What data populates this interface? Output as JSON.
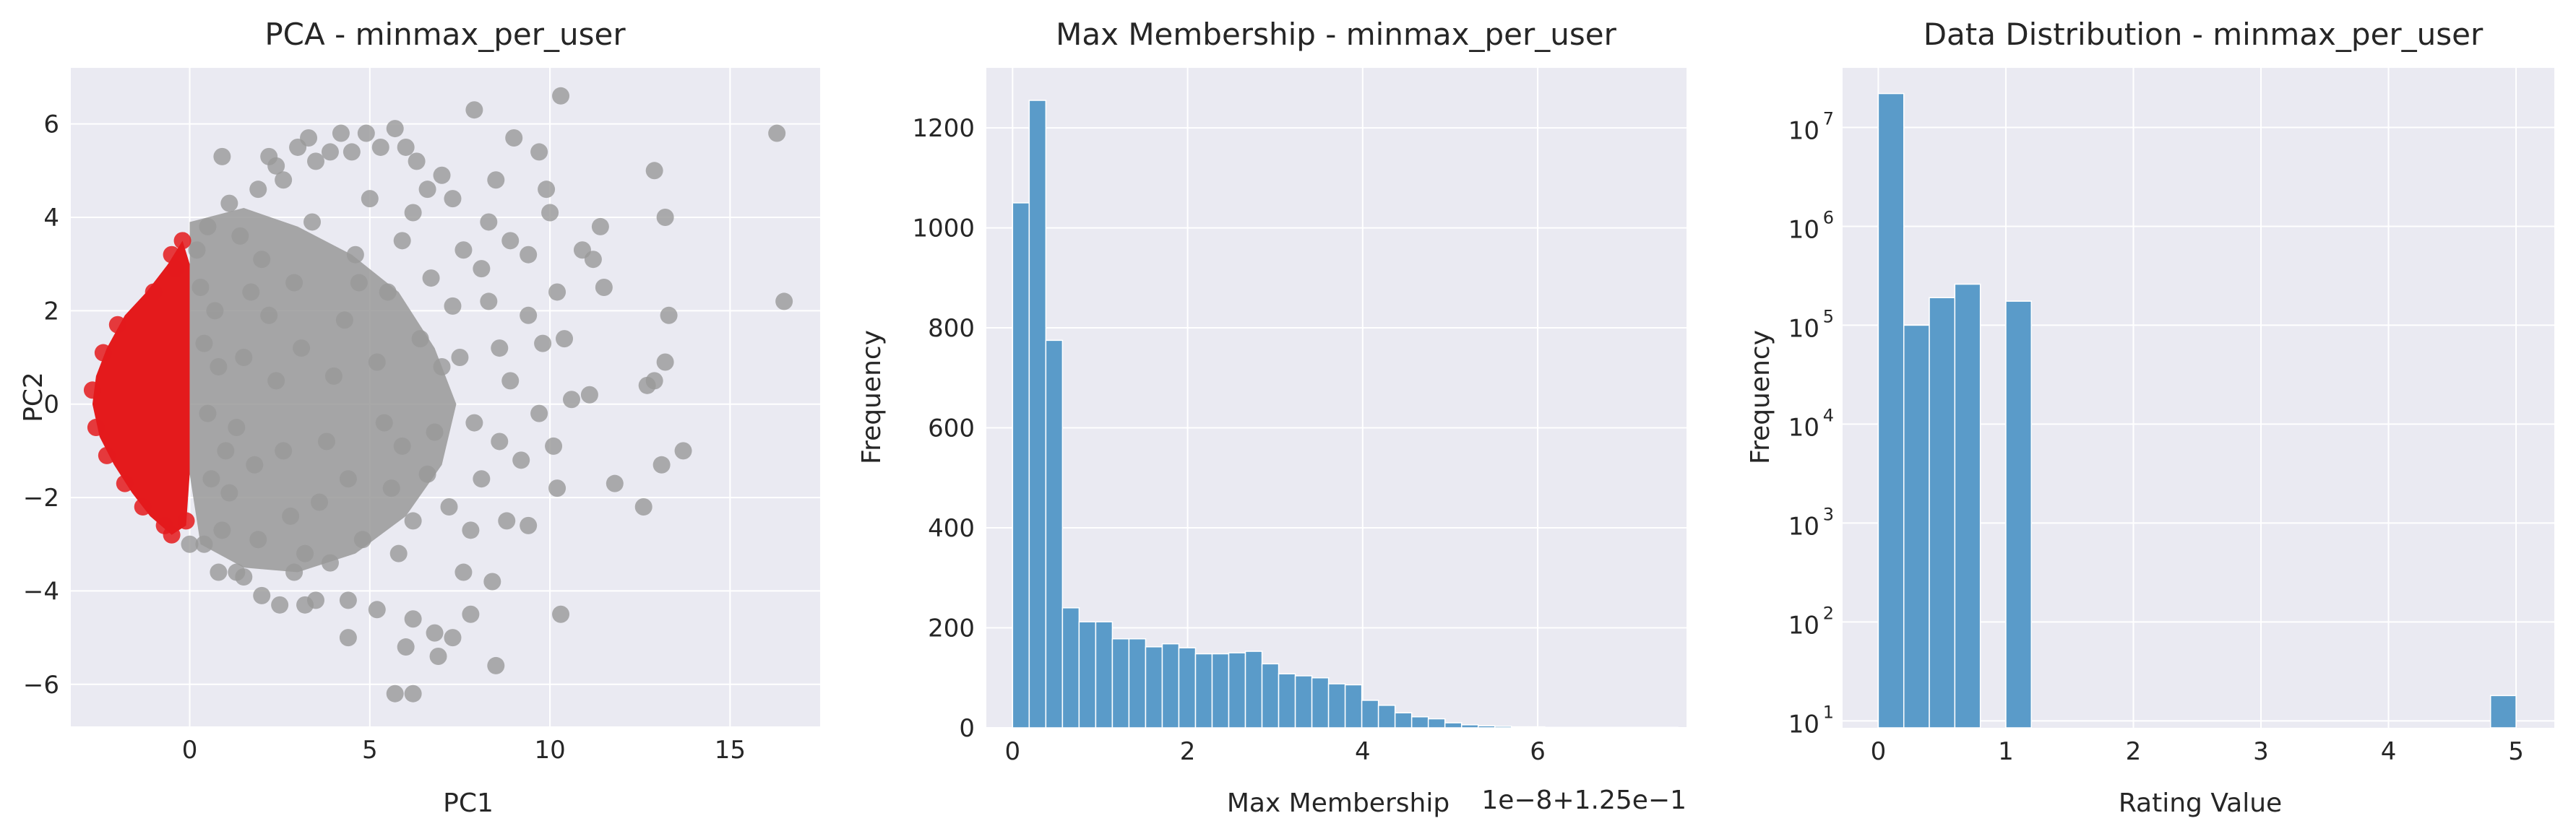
{
  "colors": {
    "plot_bg": "#eaeaf2",
    "grid": "#ffffff",
    "text": "#262626",
    "pca_highlight": "#e41a1c",
    "pca_other": "#999999",
    "bars": "#5a9bc9"
  },
  "chart_data": [
    {
      "type": "scatter",
      "title": "PCA - minmax_per_user",
      "xlabel": "PC1",
      "ylabel": "PC2",
      "xlim": [
        -3.3,
        17.5
      ],
      "ylim": [
        -6.9,
        7.2
      ],
      "xticks": [
        0,
        5,
        10,
        15
      ],
      "xtick_labels": [
        "0",
        "5",
        "10",
        "15"
      ],
      "yticks": [
        -6,
        -4,
        -2,
        0,
        2,
        4,
        6
      ],
      "ytick_labels": [
        "−6",
        "−4",
        "−2",
        "0",
        "2",
        "4",
        "6"
      ],
      "grid": true,
      "series": [
        {
          "color": "#999999",
          "points": [
            [
              0.2,
              3.3
            ],
            [
              0.5,
              3.8
            ],
            [
              0.9,
              5.3
            ],
            [
              1.1,
              4.3
            ],
            [
              1.4,
              3.6
            ],
            [
              1.9,
              4.6
            ],
            [
              2.2,
              5.3
            ],
            [
              2.4,
              5.1
            ],
            [
              2.6,
              4.8
            ],
            [
              3.0,
              5.5
            ],
            [
              3.3,
              5.7
            ],
            [
              3.5,
              5.2
            ],
            [
              3.9,
              5.4
            ],
            [
              4.2,
              5.8
            ],
            [
              4.5,
              5.4
            ],
            [
              4.9,
              5.8
            ],
            [
              5.3,
              5.5
            ],
            [
              5.7,
              5.9
            ],
            [
              6.0,
              5.5
            ],
            [
              6.3,
              5.2
            ],
            [
              6.6,
              4.6
            ],
            [
              7.0,
              4.9
            ],
            [
              7.3,
              4.4
            ],
            [
              7.9,
              6.3
            ],
            [
              8.5,
              4.8
            ],
            [
              9.0,
              5.7
            ],
            [
              9.9,
              4.6
            ],
            [
              9.7,
              5.4
            ],
            [
              10.3,
              6.6
            ],
            [
              8.3,
              3.9
            ],
            [
              8.9,
              3.5
            ],
            [
              9.4,
              3.2
            ],
            [
              10.0,
              4.1
            ],
            [
              10.9,
              3.3
            ],
            [
              11.2,
              3.1
            ],
            [
              11.4,
              3.8
            ],
            [
              11.5,
              2.5
            ],
            [
              12.9,
              5.0
            ],
            [
              13.2,
              4.0
            ],
            [
              16.3,
              5.8
            ],
            [
              16.5,
              2.2
            ],
            [
              13.3,
              1.9
            ],
            [
              13.2,
              0.9
            ],
            [
              12.7,
              0.4
            ],
            [
              12.9,
              0.5
            ],
            [
              13.7,
              -1.0
            ],
            [
              13.1,
              -1.3
            ],
            [
              12.6,
              -2.2
            ],
            [
              11.8,
              -1.7
            ],
            [
              11.1,
              0.2
            ],
            [
              10.6,
              0.1
            ],
            [
              10.2,
              -1.8
            ],
            [
              10.1,
              -0.9
            ],
            [
              10.3,
              -4.5
            ],
            [
              10.2,
              2.4
            ],
            [
              10.4,
              1.4
            ],
            [
              9.4,
              1.9
            ],
            [
              9.8,
              1.3
            ],
            [
              9.7,
              -0.2
            ],
            [
              9.2,
              -1.2
            ],
            [
              9.4,
              -2.6
            ],
            [
              8.8,
              -2.5
            ],
            [
              8.4,
              -3.8
            ],
            [
              8.5,
              -5.6
            ],
            [
              7.8,
              -4.5
            ],
            [
              7.6,
              -3.6
            ],
            [
              7.3,
              -5.0
            ],
            [
              6.9,
              -5.4
            ],
            [
              6.8,
              -4.9
            ],
            [
              6.2,
              -4.6
            ],
            [
              6.0,
              -5.2
            ],
            [
              5.7,
              -6.2
            ],
            [
              6.2,
              -6.2
            ],
            [
              5.2,
              -4.4
            ],
            [
              4.4,
              -5.0
            ],
            [
              4.4,
              -4.2
            ],
            [
              3.5,
              -4.2
            ],
            [
              3.2,
              -4.3
            ],
            [
              2.5,
              -4.3
            ],
            [
              2.0,
              -4.1
            ],
            [
              1.5,
              -3.7
            ],
            [
              1.3,
              -3.6
            ],
            [
              0.8,
              -3.6
            ],
            [
              0.4,
              -3.0
            ],
            [
              0.0,
              -3.0
            ],
            [
              7.2,
              -2.2
            ],
            [
              7.8,
              -2.7
            ],
            [
              8.1,
              -1.6
            ],
            [
              8.6,
              -0.8
            ],
            [
              8.9,
              0.5
            ],
            [
              8.6,
              1.2
            ],
            [
              8.3,
              2.2
            ],
            [
              8.1,
              2.9
            ],
            [
              7.6,
              3.3
            ],
            [
              7.3,
              2.1
            ],
            [
              7.0,
              0.8
            ],
            [
              6.8,
              -0.6
            ],
            [
              6.6,
              -1.5
            ],
            [
              6.2,
              -2.5
            ],
            [
              5.8,
              -3.2
            ],
            [
              5.6,
              -1.8
            ],
            [
              5.4,
              -0.4
            ],
            [
              5.2,
              0.9
            ],
            [
              5.5,
              2.4
            ],
            [
              5.9,
              3.5
            ],
            [
              6.2,
              4.1
            ],
            [
              5.0,
              4.4
            ],
            [
              4.6,
              3.2
            ],
            [
              4.3,
              1.8
            ],
            [
              4.0,
              0.6
            ],
            [
              3.8,
              -0.8
            ],
            [
              3.6,
              -2.1
            ],
            [
              3.2,
              -3.2
            ],
            [
              2.8,
              -2.4
            ],
            [
              2.6,
              -1.0
            ],
            [
              2.4,
              0.5
            ],
            [
              2.2,
              1.9
            ],
            [
              2.0,
              3.1
            ],
            [
              1.7,
              2.4
            ],
            [
              1.5,
              1.0
            ],
            [
              1.3,
              -0.5
            ],
            [
              1.1,
              -1.9
            ],
            [
              0.9,
              -2.7
            ],
            [
              0.6,
              -1.6
            ],
            [
              0.5,
              -0.2
            ],
            [
              0.4,
              1.3
            ],
            [
              0.3,
              2.5
            ],
            [
              0.7,
              2.0
            ],
            [
              0.8,
              0.8
            ],
            [
              1.0,
              -1.0
            ],
            [
              1.9,
              -2.9
            ],
            [
              2.9,
              -3.6
            ],
            [
              3.9,
              -3.4
            ],
            [
              4.8,
              -2.9
            ],
            [
              5.9,
              -0.9
            ],
            [
              6.4,
              1.4
            ],
            [
              7.5,
              1.0
            ],
            [
              7.9,
              -0.4
            ],
            [
              3.4,
              3.9
            ],
            [
              2.9,
              2.6
            ],
            [
              4.7,
              2.6
            ],
            [
              6.7,
              2.7
            ],
            [
              3.1,
              1.2
            ],
            [
              4.4,
              -1.6
            ],
            [
              1.8,
              -1.3
            ]
          ]
        }
      ],
      "highlight_band": {
        "color": "#e41a1c",
        "boundary": [
          [
            -0.2,
            3.5
          ],
          [
            -0.6,
            3.0
          ],
          [
            -1.2,
            2.4
          ],
          [
            -1.8,
            1.9
          ],
          [
            -2.3,
            1.2
          ],
          [
            -2.6,
            0.6
          ],
          [
            -2.7,
            0.0
          ],
          [
            -2.5,
            -0.7
          ],
          [
            -2.1,
            -1.3
          ],
          [
            -1.6,
            -1.9
          ],
          [
            -1.1,
            -2.4
          ],
          [
            -0.5,
            -2.8
          ],
          [
            -0.1,
            -2.6
          ],
          [
            0.0,
            -1.5
          ],
          [
            0.0,
            0.0
          ],
          [
            0.0,
            1.8
          ],
          [
            0.0,
            3.0
          ]
        ],
        "points": [
          [
            -0.2,
            3.5
          ],
          [
            -0.5,
            3.2
          ],
          [
            -0.4,
            2.9
          ],
          [
            -1.0,
            2.4
          ],
          [
            -2.0,
            1.7
          ],
          [
            -2.4,
            1.1
          ],
          [
            -2.7,
            0.3
          ],
          [
            -2.6,
            -0.5
          ],
          [
            -2.3,
            -1.1
          ],
          [
            -1.8,
            -1.7
          ],
          [
            -1.3,
            -2.2
          ],
          [
            -0.7,
            -2.6
          ],
          [
            -0.5,
            -2.8
          ],
          [
            -0.1,
            -2.5
          ]
        ]
      }
    },
    {
      "type": "bar",
      "title": "Max Membership - minmax_per_user",
      "xlabel": "Max Membership",
      "ylabel": "Frequency",
      "offset_text": "1e−8+1.25e−1",
      "xlim": [
        -0.3,
        7.7
      ],
      "ylim": [
        0,
        1320
      ],
      "xticks": [
        0,
        2,
        4,
        6
      ],
      "xtick_labels": [
        "0",
        "2",
        "4",
        "6"
      ],
      "yticks": [
        0,
        200,
        400,
        600,
        800,
        1000,
        1200
      ],
      "ytick_labels": [
        "0",
        "200",
        "400",
        "600",
        "800",
        "1000",
        "1200"
      ],
      "grid": true,
      "bin_start": 0.0,
      "bin_width": 0.19,
      "values": [
        1050,
        1255,
        775,
        240,
        212,
        212,
        178,
        178,
        162,
        168,
        160,
        148,
        148,
        150,
        153,
        128,
        108,
        104,
        100,
        88,
        86,
        55,
        45,
        30,
        22,
        18,
        10,
        6,
        4,
        3,
        2,
        2,
        1,
        1,
        1,
        1,
        1,
        1,
        1,
        1
      ]
    },
    {
      "type": "bar",
      "title": "Data Distribution - minmax_per_user",
      "xlabel": "Rating Value",
      "ylabel": "Frequency",
      "yscale": "log",
      "xlim": [
        -0.28,
        5.3
      ],
      "ylim": [
        8.5,
        40000000
      ],
      "xticks": [
        0,
        1,
        2,
        3,
        4,
        5
      ],
      "xtick_labels": [
        "0",
        "1",
        "2",
        "3",
        "4",
        "5"
      ],
      "yticks": [
        10,
        100,
        1000,
        10000,
        100000,
        1000000,
        10000000
      ],
      "ytick_base": "10",
      "ytick_exponents": [
        "1",
        "2",
        "3",
        "4",
        "5",
        "6",
        "7"
      ],
      "grid": true,
      "bin_start": 0.0,
      "bin_width": 0.2,
      "values": [
        22000000,
        100000,
        190000,
        260000,
        0,
        175000,
        0,
        0,
        0,
        0,
        0,
        0,
        0,
        0,
        0,
        0,
        0,
        0,
        0,
        0,
        0,
        0,
        0,
        0,
        18
      ]
    }
  ]
}
